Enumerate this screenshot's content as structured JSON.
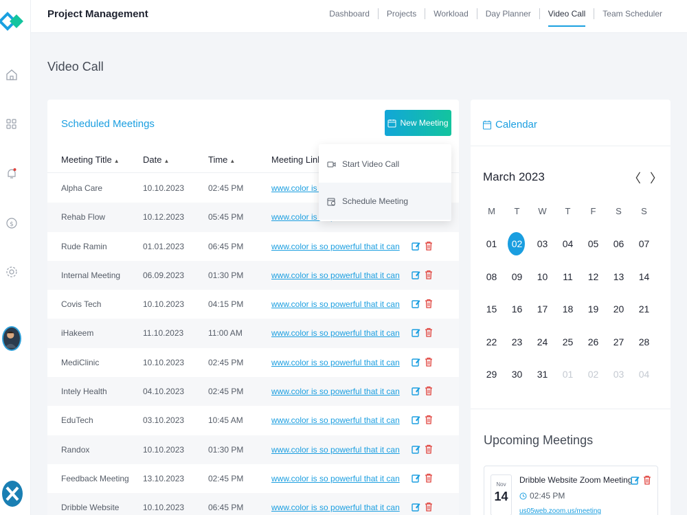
{
  "app": {
    "title": "Project Management"
  },
  "topnav": [
    {
      "label": "Dashboard"
    },
    {
      "label": "Projects"
    },
    {
      "label": "Workload"
    },
    {
      "label": "Day Planner"
    },
    {
      "label": "Video Call",
      "active": true
    },
    {
      "label": "Team Scheduler"
    }
  ],
  "sidebar": {
    "icons": [
      "home-icon",
      "grid-icon",
      "bell-icon",
      "dollar-icon",
      "gear-icon"
    ]
  },
  "page": {
    "title": "Video Call"
  },
  "meetings": {
    "title": "Scheduled Meetings",
    "new_button": "New Meeting",
    "columns": [
      "Meeting Title",
      "Date",
      "Time",
      "Meeting Link"
    ],
    "rows": [
      {
        "title": "Alpha Care",
        "date": "10.10.2023",
        "time": "02:45 PM",
        "link": "www.color is so powerful that it can"
      },
      {
        "title": "Rehab Flow",
        "date": "10.12.2023",
        "time": "05:45 PM",
        "link": "www.color is so powerful that it can"
      },
      {
        "title": "Rude Ramin",
        "date": "01.01.2023",
        "time": "06:45 PM",
        "link": "www.color is so powerful that it can"
      },
      {
        "title": "Internal Meeting",
        "date": "06.09.2023",
        "time": "01:30 PM",
        "link": "www.color is so powerful that it can"
      },
      {
        "title": "Covis Tech",
        "date": "10.10.2023",
        "time": "04:15 PM",
        "link": "www.color is so powerful that it can"
      },
      {
        "title": "iHakeem",
        "date": "11.10.2023",
        "time": "11:00 AM",
        "link": "www.color is so powerful that it can"
      },
      {
        "title": "MediClinic",
        "date": "10.10.2023",
        "time": "02:45 PM",
        "link": "www.color is so powerful that it can"
      },
      {
        "title": "Intely Health",
        "date": "04.10.2023",
        "time": "02:45 PM",
        "link": "www.color is so powerful that it can"
      },
      {
        "title": "EduTech",
        "date": "03.10.2023",
        "time": "10:45 AM",
        "link": "www.color is so powerful that it can"
      },
      {
        "title": "Randox",
        "date": "10.10.2023",
        "time": "01:30 PM",
        "link": "www.color is so powerful that it can"
      },
      {
        "title": "Feedback Meeting",
        "date": "13.10.2023",
        "time": "02:45 PM",
        "link": "www.color is so powerful that it can"
      },
      {
        "title": "Dribble Website",
        "date": "10.10.2023",
        "time": "06:45 PM",
        "link": "www.color is so powerful that it can"
      }
    ]
  },
  "dropdown": {
    "items": [
      {
        "label": "Start Video Call",
        "icon": "video-icon"
      },
      {
        "label": "Schedule Meeting",
        "icon": "calendar-clock-icon"
      }
    ]
  },
  "calendar": {
    "title": "Calendar",
    "month": "March 2023",
    "prev": "〈",
    "next": "〉",
    "weekdays": [
      "M",
      "T",
      "W",
      "T",
      "F",
      "S",
      "S"
    ],
    "days": [
      {
        "d": "01"
      },
      {
        "d": "02",
        "sel": true
      },
      {
        "d": "03"
      },
      {
        "d": "04"
      },
      {
        "d": "05"
      },
      {
        "d": "06"
      },
      {
        "d": "07"
      },
      {
        "d": "08"
      },
      {
        "d": "09"
      },
      {
        "d": "10"
      },
      {
        "d": "11"
      },
      {
        "d": "12"
      },
      {
        "d": "13"
      },
      {
        "d": "14"
      },
      {
        "d": "15"
      },
      {
        "d": "16"
      },
      {
        "d": "17"
      },
      {
        "d": "18"
      },
      {
        "d": "19"
      },
      {
        "d": "20"
      },
      {
        "d": "21"
      },
      {
        "d": "22"
      },
      {
        "d": "23"
      },
      {
        "d": "24"
      },
      {
        "d": "25"
      },
      {
        "d": "26"
      },
      {
        "d": "27"
      },
      {
        "d": "28"
      },
      {
        "d": "29"
      },
      {
        "d": "30"
      },
      {
        "d": "31"
      },
      {
        "d": "01",
        "dim": true
      },
      {
        "d": "02",
        "dim": true
      },
      {
        "d": "03",
        "dim": true
      },
      {
        "d": "04",
        "dim": true
      }
    ]
  },
  "upcoming": {
    "title": "Upcoming Meetings",
    "card": {
      "month": "Nov",
      "day": "14",
      "name": "Dribble Website Zoom Meeting",
      "time": "02:45 PM",
      "link": "us05web.zoom.us/meeting"
    }
  },
  "colors": {
    "accent": "#1a9ee0",
    "delete": "#e0423c",
    "gradient_start": "#12a6d8",
    "gradient_end": "#13c49e"
  }
}
